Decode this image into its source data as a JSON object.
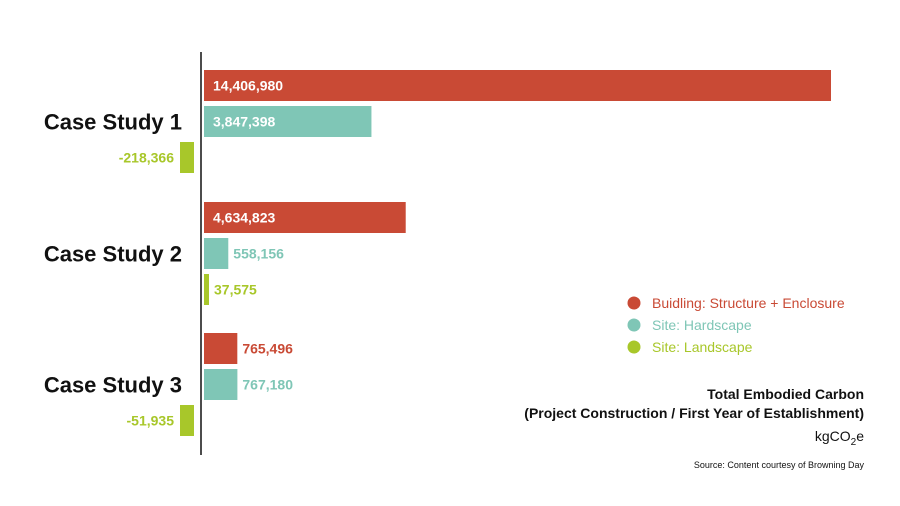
{
  "chart_data": {
    "type": "bar",
    "orientation": "horizontal",
    "categories": [
      "Case Study 1",
      "Case Study 2",
      "Case Study 3"
    ],
    "series": [
      {
        "name": "Buidling: Structure + Enclosure",
        "color": "#c94a35",
        "values": [
          14406980,
          4634823,
          765496
        ],
        "labels": [
          "14,406,980",
          "4,634,823",
          "765,496"
        ]
      },
      {
        "name": "Site: Hardscape",
        "color": "#7fc6b6",
        "values": [
          3847398,
          558156,
          767180
        ],
        "labels": [
          "3,847,398",
          "558,156",
          "767,180"
        ]
      },
      {
        "name": "Site: Landscape",
        "color": "#a8c72a",
        "values": [
          -218366,
          37575,
          -51935
        ],
        "labels": [
          "-218,366",
          "37,575",
          "-51,935"
        ]
      }
    ],
    "title": "Total Embodied Carbon",
    "subtitle": "(Project Construction / First Year of Establishment)",
    "unit": {
      "base": "kgCO",
      "sub": "2",
      "suffix": "e"
    },
    "source": "Source: Content courtesy of Browning Day",
    "legend_position": "right",
    "grid": false
  }
}
